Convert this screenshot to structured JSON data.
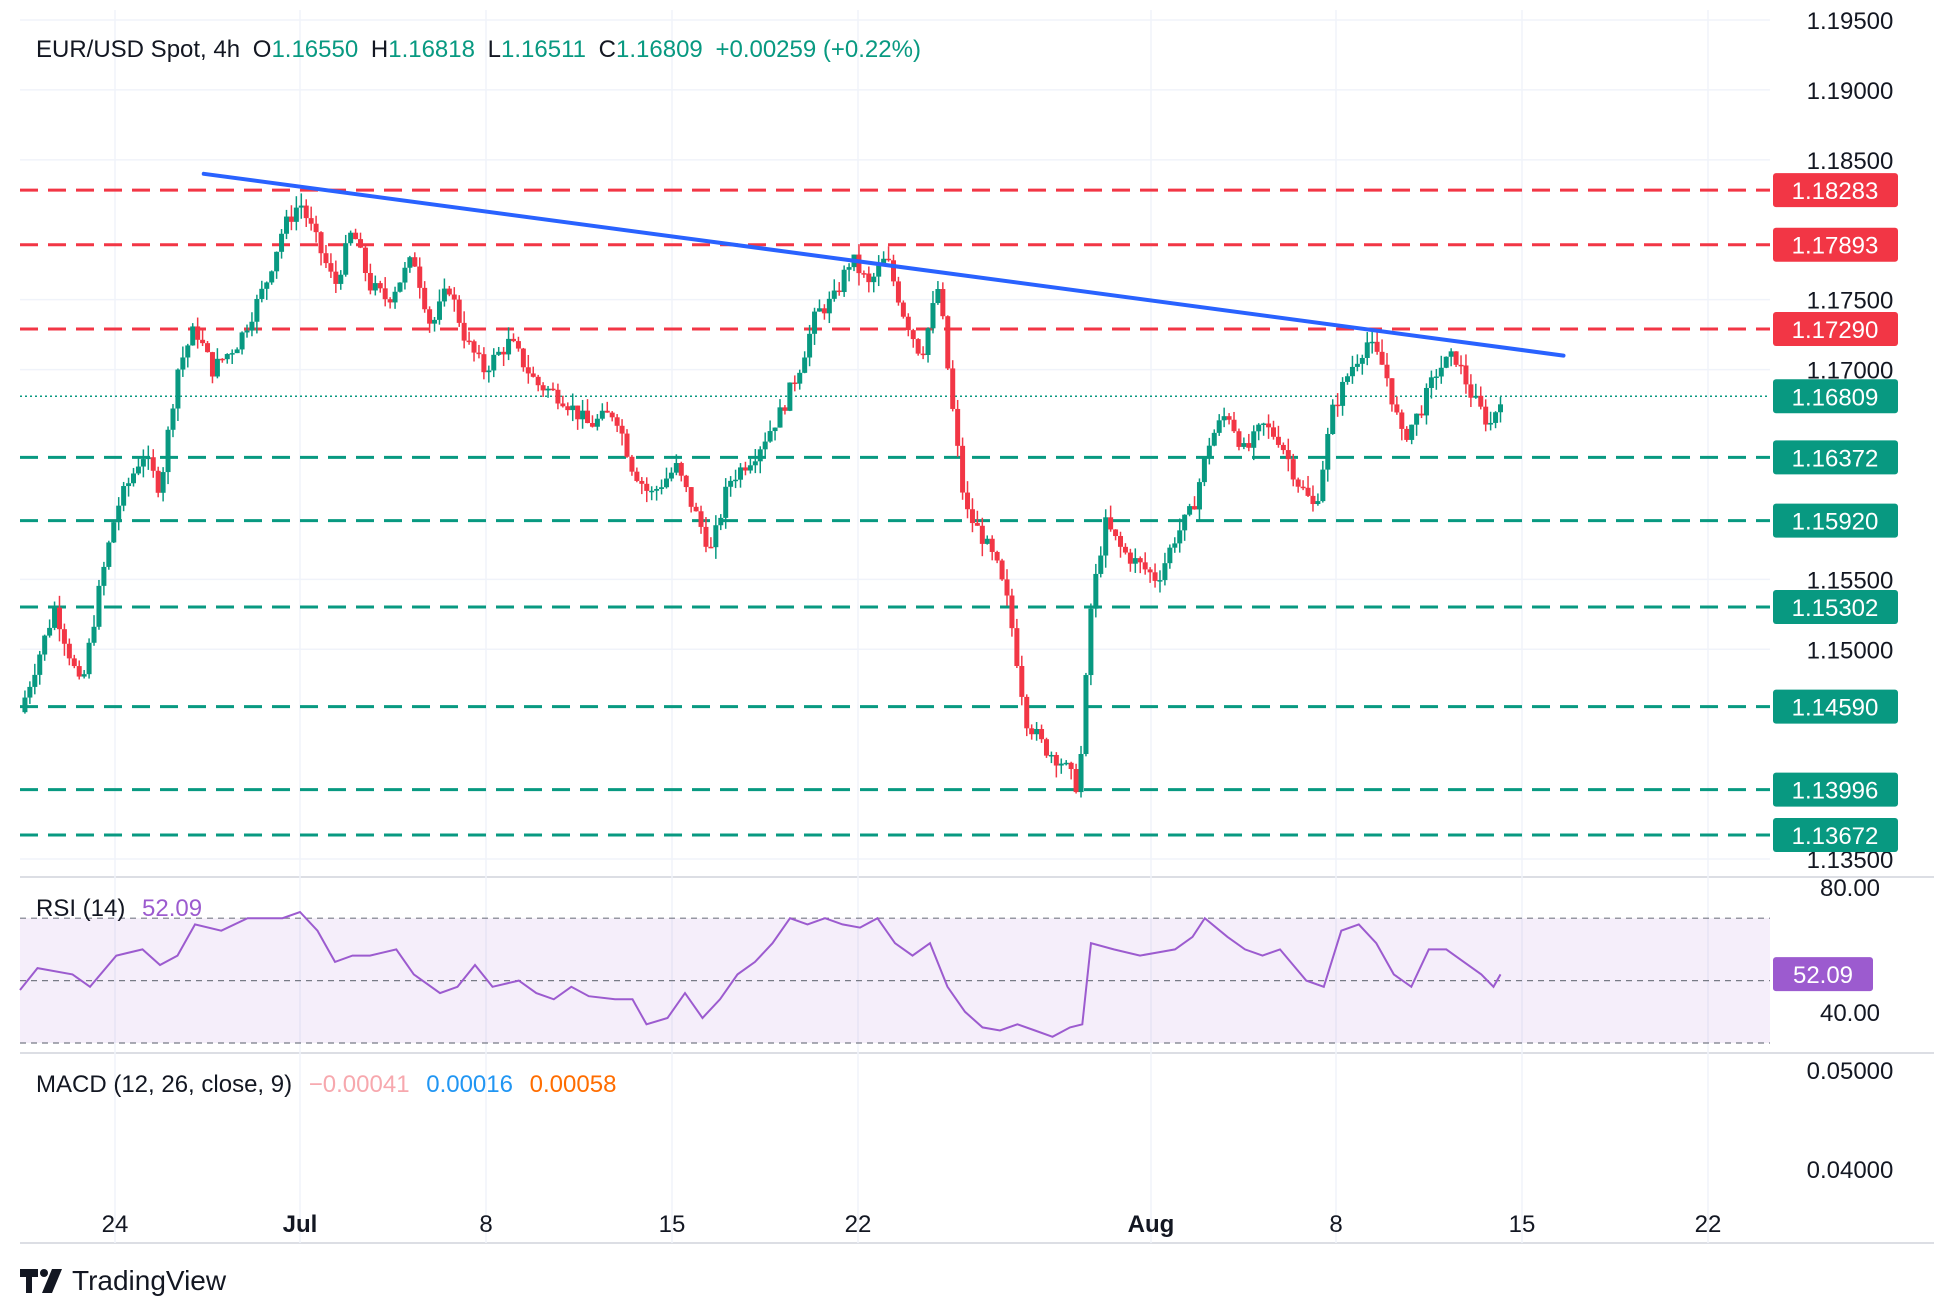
{
  "header": {
    "title": "EUR/USD Spot, 4h",
    "o_label": "O",
    "o_value": "1.16550",
    "h_label": "H",
    "h_value": "1.16818",
    "l_label": "L",
    "l_value": "1.16511",
    "c_label": "C",
    "c_value": "1.16809",
    "change": "+0.00259 (+0.22%)"
  },
  "rsi": {
    "label": "RSI (14)",
    "value": "52.09",
    "axis_labels": [
      "80.00",
      "40.00"
    ],
    "badge": "52.09"
  },
  "macd": {
    "label": "MACD (12, 26, close, 9)",
    "v1": "−0.00041",
    "v2": "0.00016",
    "v3": "0.00058",
    "axis_labels": [
      "0.05000",
      "0.04000"
    ]
  },
  "brand": {
    "name": "TradingView"
  },
  "colors": {
    "up": "#089981",
    "down": "#f23645",
    "trend": "#2962ff",
    "rsi": "#9c5bcf",
    "macd": "#2196f3",
    "signal": "#ff6d00"
  },
  "chart_data": {
    "type": "candlestick",
    "symbol": "EUR/USD Spot",
    "timeframe": "4h",
    "price_axis_ticks": [
      "1.19500",
      "1.19000",
      "1.18500",
      "1.17500",
      "1.17000",
      "1.15500",
      "1.15000",
      "1.13500"
    ],
    "time_axis_ticks": [
      "24",
      "Jul",
      "8",
      "15",
      "22",
      "Aug",
      "8",
      "15",
      "22"
    ],
    "ylim": [
      1.134,
      1.196
    ],
    "last_price": "1.16809",
    "resistance_levels": [
      "1.18283",
      "1.17893",
      "1.17290"
    ],
    "support_levels": [
      "1.16372",
      "1.15920",
      "1.15302",
      "1.14590",
      "1.13996",
      "1.13672"
    ],
    "trendline": {
      "start": [
        0.105,
        1.184
      ],
      "end": [
        0.882,
        1.171
      ]
    },
    "price_path": [
      [
        0.0,
        1.1455
      ],
      [
        0.02,
        1.153
      ],
      [
        0.035,
        1.147
      ],
      [
        0.045,
        1.154
      ],
      [
        0.055,
        1.16
      ],
      [
        0.07,
        1.164
      ],
      [
        0.08,
        1.1615
      ],
      [
        0.09,
        1.17
      ],
      [
        0.1,
        1.173
      ],
      [
        0.11,
        1.17
      ],
      [
        0.125,
        1.172
      ],
      [
        0.14,
        1.176
      ],
      [
        0.15,
        1.18
      ],
      [
        0.16,
        1.182
      ],
      [
        0.17,
        1.179
      ],
      [
        0.18,
        1.176
      ],
      [
        0.19,
        1.18
      ],
      [
        0.2,
        1.176
      ],
      [
        0.21,
        1.175
      ],
      [
        0.225,
        1.178
      ],
      [
        0.235,
        1.173
      ],
      [
        0.245,
        1.176
      ],
      [
        0.255,
        1.172
      ],
      [
        0.265,
        1.17
      ],
      [
        0.28,
        1.172
      ],
      [
        0.295,
        1.169
      ],
      [
        0.31,
        1.168
      ],
      [
        0.325,
        1.166
      ],
      [
        0.34,
        1.167
      ],
      [
        0.35,
        1.163
      ],
      [
        0.36,
        1.161
      ],
      [
        0.375,
        1.163
      ],
      [
        0.385,
        1.16
      ],
      [
        0.395,
        1.157
      ],
      [
        0.405,
        1.162
      ],
      [
        0.42,
        1.164
      ],
      [
        0.435,
        1.167
      ],
      [
        0.445,
        1.17
      ],
      [
        0.455,
        1.174
      ],
      [
        0.465,
        1.175
      ],
      [
        0.475,
        1.178
      ],
      [
        0.485,
        1.176
      ],
      [
        0.495,
        1.178
      ],
      [
        0.505,
        1.174
      ],
      [
        0.515,
        1.171
      ],
      [
        0.525,
        1.176
      ],
      [
        0.532,
        1.168
      ],
      [
        0.54,
        1.16
      ],
      [
        0.55,
        1.158
      ],
      [
        0.558,
        1.156
      ],
      [
        0.565,
        1.153
      ],
      [
        0.575,
        1.145
      ],
      [
        0.585,
        1.143
      ],
      [
        0.595,
        1.142
      ],
      [
        0.605,
        1.14
      ],
      [
        0.612,
        1.153
      ],
      [
        0.62,
        1.159
      ],
      [
        0.63,
        1.157
      ],
      [
        0.64,
        1.156
      ],
      [
        0.65,
        1.155
      ],
      [
        0.66,
        1.158
      ],
      [
        0.67,
        1.16
      ],
      [
        0.68,
        1.165
      ],
      [
        0.69,
        1.167
      ],
      [
        0.7,
        1.164
      ],
      [
        0.71,
        1.166
      ],
      [
        0.72,
        1.165
      ],
      [
        0.73,
        1.162
      ],
      [
        0.74,
        1.16
      ],
      [
        0.75,
        1.167
      ],
      [
        0.76,
        1.17
      ],
      [
        0.77,
        1.172
      ],
      [
        0.78,
        1.17
      ],
      [
        0.79,
        1.165
      ],
      [
        0.8,
        1.167
      ],
      [
        0.81,
        1.17
      ],
      [
        0.82,
        1.171
      ],
      [
        0.83,
        1.168
      ],
      [
        0.84,
        1.166
      ],
      [
        0.846,
        1.1681
      ]
    ],
    "rsi_path": [
      [
        0.0,
        47
      ],
      [
        0.01,
        54
      ],
      [
        0.03,
        52
      ],
      [
        0.04,
        48
      ],
      [
        0.055,
        58
      ],
      [
        0.07,
        60
      ],
      [
        0.08,
        55
      ],
      [
        0.09,
        58
      ],
      [
        0.1,
        68
      ],
      [
        0.115,
        66
      ],
      [
        0.13,
        70
      ],
      [
        0.15,
        70
      ],
      [
        0.16,
        72
      ],
      [
        0.17,
        66
      ],
      [
        0.18,
        56
      ],
      [
        0.19,
        58
      ],
      [
        0.2,
        58
      ],
      [
        0.215,
        60
      ],
      [
        0.225,
        52
      ],
      [
        0.24,
        46
      ],
      [
        0.25,
        48
      ],
      [
        0.26,
        55
      ],
      [
        0.27,
        48
      ],
      [
        0.285,
        50
      ],
      [
        0.295,
        46
      ],
      [
        0.305,
        44
      ],
      [
        0.315,
        48
      ],
      [
        0.325,
        45
      ],
      [
        0.34,
        44
      ],
      [
        0.35,
        44
      ],
      [
        0.358,
        36
      ],
      [
        0.37,
        38
      ],
      [
        0.38,
        46
      ],
      [
        0.39,
        38
      ],
      [
        0.4,
        44
      ],
      [
        0.41,
        52
      ],
      [
        0.42,
        56
      ],
      [
        0.43,
        62
      ],
      [
        0.44,
        70
      ],
      [
        0.45,
        68
      ],
      [
        0.46,
        70
      ],
      [
        0.47,
        68
      ],
      [
        0.48,
        67
      ],
      [
        0.49,
        70
      ],
      [
        0.5,
        62
      ],
      [
        0.51,
        58
      ],
      [
        0.52,
        62
      ],
      [
        0.53,
        48
      ],
      [
        0.54,
        40
      ],
      [
        0.55,
        35
      ],
      [
        0.56,
        34
      ],
      [
        0.57,
        36
      ],
      [
        0.58,
        34
      ],
      [
        0.59,
        32
      ],
      [
        0.6,
        35
      ],
      [
        0.607,
        36
      ],
      [
        0.612,
        62
      ],
      [
        0.625,
        60
      ],
      [
        0.64,
        58
      ],
      [
        0.65,
        59
      ],
      [
        0.66,
        60
      ],
      [
        0.67,
        64
      ],
      [
        0.677,
        70
      ],
      [
        0.69,
        64
      ],
      [
        0.7,
        60
      ],
      [
        0.71,
        58
      ],
      [
        0.72,
        60
      ],
      [
        0.735,
        50
      ],
      [
        0.745,
        48
      ],
      [
        0.755,
        66
      ],
      [
        0.765,
        68
      ],
      [
        0.775,
        62
      ],
      [
        0.785,
        52
      ],
      [
        0.795,
        48
      ],
      [
        0.805,
        60
      ],
      [
        0.815,
        60
      ],
      [
        0.825,
        56
      ],
      [
        0.835,
        52
      ],
      [
        0.842,
        48
      ],
      [
        0.846,
        52
      ]
    ],
    "rsi_range": [
      30,
      80
    ]
  }
}
